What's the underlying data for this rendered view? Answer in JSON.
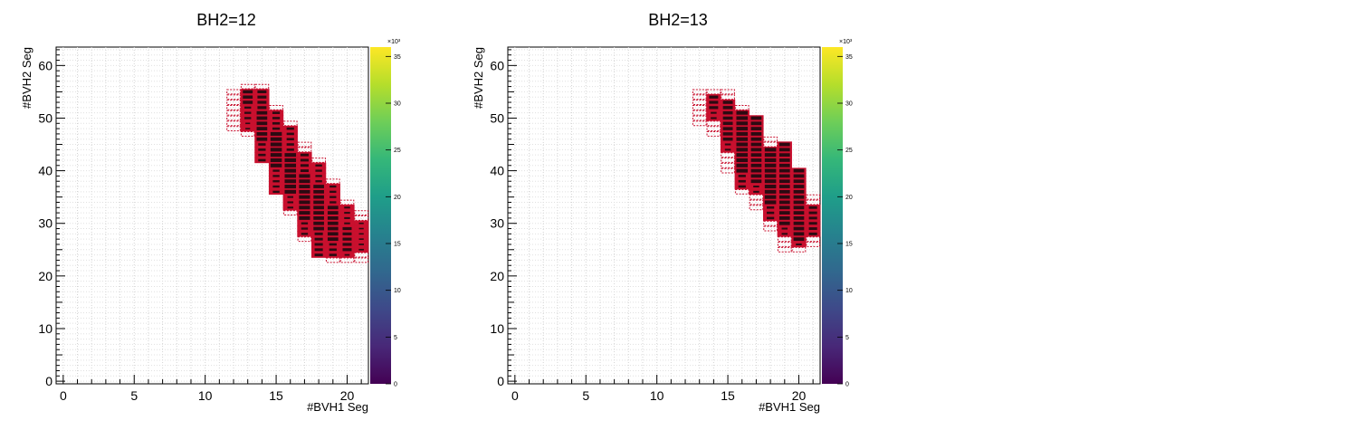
{
  "chart_data": [
    {
      "type": "heatmap",
      "title": "BH2=12",
      "xlabel": "#BVH1 Seg",
      "ylabel": "#BVH2 Seg",
      "xlim": [
        -0.5,
        21.5
      ],
      "ylim": [
        -0.5,
        63.5
      ],
      "xticks": [
        "0",
        "5",
        "10",
        "15",
        "20"
      ],
      "yticks": [
        "0",
        "10",
        "20",
        "30",
        "40",
        "50",
        "60"
      ],
      "zlim": [
        0,
        36000
      ],
      "zticks": [
        "0",
        "5",
        "10",
        "15",
        "20",
        "25",
        "30",
        "35"
      ],
      "zscale": "×10³",
      "colorscale": "viridis",
      "grid": true,
      "box_color": "#c8102e",
      "columns": [
        {
          "x": 13,
          "rows": [
            [
              53,
              55,
              0.8
            ],
            [
              50,
              52,
              0.4
            ],
            [
              48,
              49,
              0.15
            ]
          ]
        },
        {
          "x": 14,
          "rows": [
            [
              52,
              55,
              0.7
            ],
            [
              46,
              51,
              0.9
            ],
            [
              42,
              45,
              0.5
            ]
          ]
        },
        {
          "x": 15,
          "rows": [
            [
              48,
              51,
              0.5
            ],
            [
              41,
              47,
              1.0
            ],
            [
              36,
              40,
              0.4
            ]
          ]
        },
        {
          "x": 16,
          "rows": [
            [
              44,
              48,
              0.5
            ],
            [
              36,
              43,
              1.0
            ],
            [
              33,
              35,
              0.3
            ]
          ]
        },
        {
          "x": 17,
          "rows": [
            [
              40,
              43,
              0.6
            ],
            [
              31,
              39,
              0.95
            ],
            [
              28,
              30,
              0.4
            ]
          ]
        },
        {
          "x": 18,
          "rows": [
            [
              38,
              41,
              0.4
            ],
            [
              29,
              37,
              0.9
            ],
            [
              24,
              28,
              0.6
            ]
          ]
        },
        {
          "x": 19,
          "rows": [
            [
              34,
              37,
              0.4
            ],
            [
              27,
              33,
              0.9
            ],
            [
              24,
              26,
              0.5
            ]
          ]
        },
        {
          "x": 20,
          "rows": [
            [
              30,
              33,
              0.3
            ],
            [
              25,
              29,
              0.7
            ],
            [
              24,
              24,
              0.2
            ]
          ]
        },
        {
          "x": 21,
          "rows": [
            [
              27,
              30,
              0.15
            ],
            [
              25,
              26,
              0.2
            ]
          ]
        }
      ],
      "halo": [
        [
          12,
          48,
          55
        ],
        [
          13,
          47,
          56
        ],
        [
          14,
          42,
          56
        ],
        [
          15,
          36,
          52
        ],
        [
          16,
          32,
          49
        ],
        [
          17,
          27,
          45
        ],
        [
          18,
          24,
          42
        ],
        [
          19,
          23,
          38
        ],
        [
          20,
          23,
          34
        ],
        [
          21,
          23,
          32
        ]
      ]
    },
    {
      "type": "heatmap",
      "title": "BH2=13",
      "xlabel": "#BVH1 Seg",
      "ylabel": "#BVH2 Seg",
      "xlim": [
        -0.5,
        21.5
      ],
      "ylim": [
        -0.5,
        63.5
      ],
      "xticks": [
        "0",
        "5",
        "10",
        "15",
        "20"
      ],
      "yticks": [
        "0",
        "10",
        "20",
        "30",
        "40",
        "50",
        "60"
      ],
      "zlim": [
        0,
        36000
      ],
      "zticks": [
        "0",
        "5",
        "10",
        "15",
        "20",
        "25",
        "30",
        "35"
      ],
      "zscale": "×10³",
      "colorscale": "viridis",
      "grid": true,
      "box_color": "#c8102e",
      "columns": [
        {
          "x": 14,
          "rows": [
            [
              52,
              54,
              0.7
            ],
            [
              50,
              51,
              0.3
            ]
          ]
        },
        {
          "x": 15,
          "rows": [
            [
              46,
              53,
              0.8
            ],
            [
              44,
              45,
              0.3
            ]
          ]
        },
        {
          "x": 16,
          "rows": [
            [
              40,
              51,
              1.0
            ],
            [
              37,
              39,
              0.5
            ]
          ]
        },
        {
          "x": 17,
          "rows": [
            [
              38,
              50,
              0.9
            ],
            [
              36,
              37,
              0.3
            ]
          ]
        },
        {
          "x": 18,
          "rows": [
            [
              34,
              44,
              1.0
            ],
            [
              31,
              33,
              0.5
            ]
          ]
        },
        {
          "x": 19,
          "rows": [
            [
              30,
              45,
              0.9
            ],
            [
              28,
              29,
              0.3
            ]
          ]
        },
        {
          "x": 20,
          "rows": [
            [
              27,
              40,
              0.9
            ],
            [
              26,
              26,
              0.3
            ]
          ]
        },
        {
          "x": 21,
          "rows": [
            [
              28,
              33,
              0.6
            ]
          ]
        }
      ],
      "halo": [
        [
          13,
          49,
          55
        ],
        [
          14,
          47,
          55
        ],
        [
          15,
          40,
          55
        ],
        [
          16,
          36,
          52
        ],
        [
          17,
          33,
          48
        ],
        [
          18,
          29,
          46
        ],
        [
          19,
          25,
          43
        ],
        [
          20,
          25,
          38
        ],
        [
          21,
          26,
          35
        ]
      ]
    }
  ]
}
